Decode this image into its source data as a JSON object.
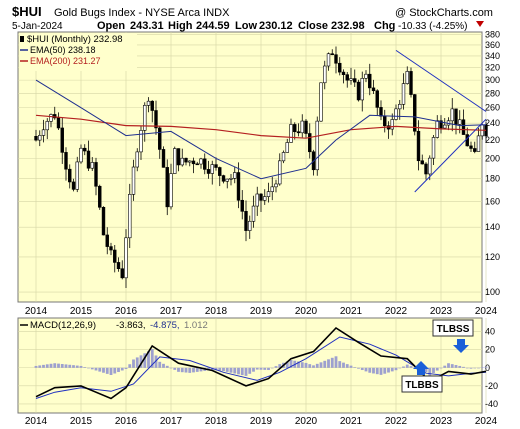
{
  "header": {
    "symbol": "$HUI",
    "name": "Gold Bugs Index - NYSE Arca INDX",
    "watermark": "@ StockCharts.com",
    "date": "5-Jan-2024",
    "open_label": "Open",
    "open": "243.31",
    "high_label": "High",
    "high": "244.59",
    "low_label": "Low",
    "low": "230.12",
    "close_label": "Close",
    "close": "232.98",
    "chg_label": "Chg",
    "chg": "-10.33 (-4.25%)"
  },
  "legend": {
    "price": "$HUI (Monthly) 232.98",
    "ema50": "EMA(50) 238.18",
    "ema200": "EMA(200) 231.27",
    "macd_name": "MACD(12,26,9)",
    "macd_v1": "-3.863,",
    "macd_v2": "-4.875,",
    "macd_v3": "1.012"
  },
  "annotations": {
    "tlbss": "TLBSS",
    "tlbbs": "TLBBS"
  },
  "colors": {
    "plot_bg": "#ffffcc",
    "ema50": "#1f2f8f",
    "ema200": "#b42020",
    "candle": "#000000",
    "trend_line": "#2030c0",
    "macd_line": "#000000",
    "signal_line": "#2030c0",
    "histogram": "#9da0cf",
    "callout": "#1a5fd8"
  },
  "chart_data": {
    "type": "candlestick",
    "x_ticks": [
      "2014",
      "2015",
      "2016",
      "2017",
      "2018",
      "2019",
      "2020",
      "2021",
      "2022",
      "2023",
      "2024"
    ],
    "y_ticks": [
      100,
      120,
      140,
      160,
      180,
      200,
      220,
      240,
      260,
      280,
      300,
      320,
      340,
      360,
      380
    ],
    "y_scale": "log",
    "ylim": [
      95,
      385
    ],
    "monthly_close": [
      {
        "date": "2014-01",
        "close": 220
      },
      {
        "date": "2014-03",
        "close": 240
      },
      {
        "date": "2014-06",
        "close": 252
      },
      {
        "date": "2014-09",
        "close": 195
      },
      {
        "date": "2014-11",
        "close": 168
      },
      {
        "date": "2015-01",
        "close": 210
      },
      {
        "date": "2015-04",
        "close": 190
      },
      {
        "date": "2015-07",
        "close": 135
      },
      {
        "date": "2015-09",
        "close": 120
      },
      {
        "date": "2015-12",
        "close": 110
      },
      {
        "date": "2016-02",
        "close": 160
      },
      {
        "date": "2016-04",
        "close": 215
      },
      {
        "date": "2016-07",
        "close": 280
      },
      {
        "date": "2016-09",
        "close": 235
      },
      {
        "date": "2016-12",
        "close": 160
      },
      {
        "date": "2017-02",
        "close": 205
      },
      {
        "date": "2017-04",
        "close": 195
      },
      {
        "date": "2017-08",
        "close": 200
      },
      {
        "date": "2017-12",
        "close": 190
      },
      {
        "date": "2018-02",
        "close": 185
      },
      {
        "date": "2018-06",
        "close": 180
      },
      {
        "date": "2018-09",
        "close": 138
      },
      {
        "date": "2018-12",
        "close": 160
      },
      {
        "date": "2019-03",
        "close": 165
      },
      {
        "date": "2019-06",
        "close": 190
      },
      {
        "date": "2019-09",
        "close": 230
      },
      {
        "date": "2019-12",
        "close": 235
      },
      {
        "date": "2020-03",
        "close": 195
      },
      {
        "date": "2020-05",
        "close": 300
      },
      {
        "date": "2020-08",
        "close": 350
      },
      {
        "date": "2020-12",
        "close": 300
      },
      {
        "date": "2021-03",
        "close": 280
      },
      {
        "date": "2021-05",
        "close": 315
      },
      {
        "date": "2021-09",
        "close": 240
      },
      {
        "date": "2021-12",
        "close": 240
      },
      {
        "date": "2022-04",
        "close": 305
      },
      {
        "date": "2022-07",
        "close": 200
      },
      {
        "date": "2022-09",
        "close": 185
      },
      {
        "date": "2022-12",
        "close": 240
      },
      {
        "date": "2023-04",
        "close": 255
      },
      {
        "date": "2023-07",
        "close": 225
      },
      {
        "date": "2023-10",
        "close": 200
      },
      {
        "date": "2023-12",
        "close": 243
      },
      {
        "date": "2024-01",
        "close": 232.98
      }
    ],
    "ema50": [
      {
        "date": "2014-01",
        "value": 300
      },
      {
        "date": "2015-01",
        "value": 260
      },
      {
        "date": "2016-01",
        "value": 225
      },
      {
        "date": "2017-01",
        "value": 230
      },
      {
        "date": "2018-01",
        "value": 200
      },
      {
        "date": "2019-01",
        "value": 180
      },
      {
        "date": "2020-01",
        "value": 190
      },
      {
        "date": "2020-09",
        "value": 220
      },
      {
        "date": "2021-06",
        "value": 250
      },
      {
        "date": "2022-06",
        "value": 248
      },
      {
        "date": "2023-06",
        "value": 237
      },
      {
        "date": "2024-01",
        "value": 238.18
      }
    ],
    "ema200": [
      {
        "date": "2014-01",
        "value": 250
      },
      {
        "date": "2015-01",
        "value": 245
      },
      {
        "date": "2016-01",
        "value": 237
      },
      {
        "date": "2017-01",
        "value": 236
      },
      {
        "date": "2018-01",
        "value": 232
      },
      {
        "date": "2019-01",
        "value": 225
      },
      {
        "date": "2020-01",
        "value": 222
      },
      {
        "date": "2021-01",
        "value": 232
      },
      {
        "date": "2022-01",
        "value": 236
      },
      {
        "date": "2023-01",
        "value": 233
      },
      {
        "date": "2024-01",
        "value": 231.27
      }
    ],
    "trend_lines": [
      {
        "from": {
          "date": "2022-01",
          "value": 350
        },
        "to": {
          "date": "2024-01",
          "value": 255
        }
      },
      {
        "from": {
          "date": "2022-06",
          "value": 168
        },
        "to": {
          "date": "2024-01",
          "value": 245
        }
      }
    ],
    "macd": {
      "y_ticks": [
        40,
        20,
        0,
        -20,
        -40
      ],
      "ylim": [
        -50,
        55
      ],
      "macd_line": [
        {
          "date": "2014-01",
          "value": -32
        },
        {
          "date": "2014-06",
          "value": -22
        },
        {
          "date": "2015-01",
          "value": -20
        },
        {
          "date": "2015-09",
          "value": -34
        },
        {
          "date": "2016-01",
          "value": -22
        },
        {
          "date": "2016-08",
          "value": 24
        },
        {
          "date": "2017-03",
          "value": 5
        },
        {
          "date": "2017-12",
          "value": -3
        },
        {
          "date": "2018-09",
          "value": -20
        },
        {
          "date": "2019-03",
          "value": -12
        },
        {
          "date": "2019-09",
          "value": 10
        },
        {
          "date": "2020-03",
          "value": 18
        },
        {
          "date": "2020-09",
          "value": 44
        },
        {
          "date": "2021-03",
          "value": 28
        },
        {
          "date": "2021-09",
          "value": 13
        },
        {
          "date": "2022-04",
          "value": 10
        },
        {
          "date": "2022-10",
          "value": -15
        },
        {
          "date": "2023-03",
          "value": -4
        },
        {
          "date": "2023-09",
          "value": -7
        },
        {
          "date": "2024-01",
          "value": -3.863
        }
      ],
      "signal_line": [
        {
          "date": "2014-01",
          "value": -34
        },
        {
          "date": "2014-06",
          "value": -27
        },
        {
          "date": "2015-01",
          "value": -22
        },
        {
          "date": "2015-09",
          "value": -26
        },
        {
          "date": "2016-03",
          "value": -18
        },
        {
          "date": "2016-10",
          "value": 12
        },
        {
          "date": "2017-06",
          "value": 8
        },
        {
          "date": "2018-03",
          "value": -5
        },
        {
          "date": "2018-12",
          "value": -14
        },
        {
          "date": "2019-06",
          "value": -5
        },
        {
          "date": "2020-01",
          "value": 10
        },
        {
          "date": "2020-10",
          "value": 34
        },
        {
          "date": "2021-06",
          "value": 26
        },
        {
          "date": "2022-01",
          "value": 14
        },
        {
          "date": "2022-09",
          "value": -6
        },
        {
          "date": "2023-03",
          "value": -9
        },
        {
          "date": "2023-09",
          "value": -6
        },
        {
          "date": "2024-01",
          "value": -4.875
        }
      ]
    }
  }
}
